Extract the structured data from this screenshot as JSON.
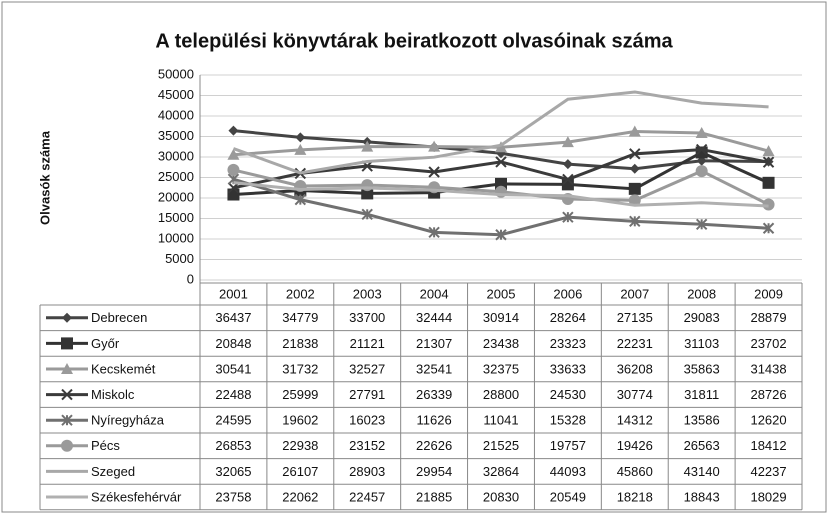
{
  "chart_data": {
    "type": "line",
    "title": "A települési könyvtárak beiratkozott olvasóinak száma",
    "y_label": "Olvasók száma",
    "categories": [
      "2001",
      "2002",
      "2003",
      "2004",
      "2005",
      "2006",
      "2007",
      "2008",
      "2009"
    ],
    "ylim": [
      0,
      50000
    ],
    "yticks": [
      0,
      5000,
      10000,
      15000,
      20000,
      25000,
      30000,
      35000,
      40000,
      45000,
      50000
    ],
    "grid": true,
    "series": [
      {
        "name": "Debrecen",
        "color": "#444444",
        "marker": "diamond",
        "values": [
          36437,
          34779,
          33700,
          32444,
          30914,
          28264,
          27135,
          29083,
          28879
        ]
      },
      {
        "name": "Győr",
        "color": "#333333",
        "marker": "square",
        "values": [
          20848,
          21838,
          21121,
          21307,
          23438,
          23323,
          22231,
          31103,
          23702
        ]
      },
      {
        "name": "Kecskemét",
        "color": "#9a9a9a",
        "marker": "triangle",
        "values": [
          30541,
          31732,
          32527,
          32541,
          32375,
          33633,
          36208,
          35863,
          31438
        ]
      },
      {
        "name": "Miskolc",
        "color": "#3a3a3a",
        "marker": "x",
        "values": [
          22488,
          25999,
          27791,
          26339,
          28800,
          24530,
          30774,
          31811,
          28726
        ]
      },
      {
        "name": "Nyíregyháza",
        "color": "#707070",
        "marker": "star",
        "values": [
          24595,
          19602,
          16023,
          11626,
          11041,
          15328,
          14312,
          13586,
          12620
        ]
      },
      {
        "name": "Pécs",
        "color": "#9a9a9a",
        "marker": "circle",
        "values": [
          26853,
          22938,
          23152,
          22626,
          21525,
          19757,
          19426,
          26563,
          18412
        ]
      },
      {
        "name": "Szeged",
        "color": "#a8a8a8",
        "marker": "none",
        "values": [
          32065,
          26107,
          28903,
          29954,
          32864,
          44093,
          45860,
          43140,
          42237
        ]
      },
      {
        "name": "Székesfehérvár",
        "color": "#b0b0b0",
        "marker": "none",
        "values": [
          23758,
          22062,
          22457,
          21885,
          20830,
          20549,
          18218,
          18843,
          18029
        ]
      }
    ]
  }
}
